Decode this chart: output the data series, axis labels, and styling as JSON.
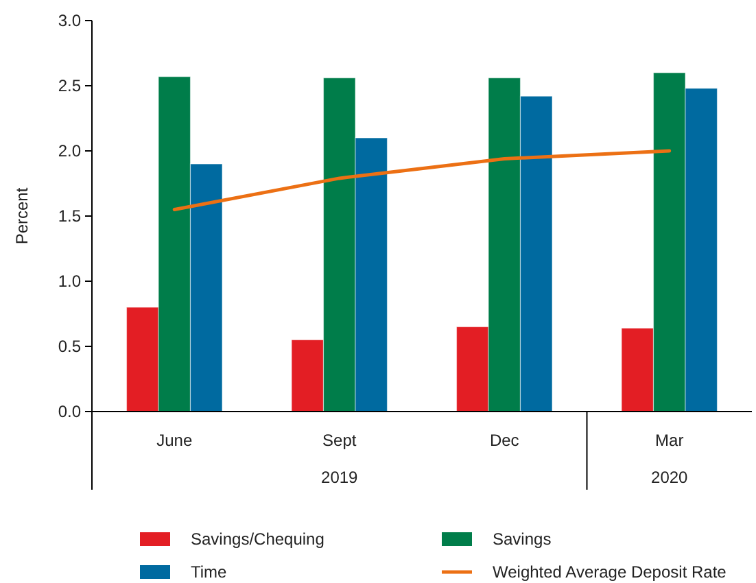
{
  "chart_data": {
    "type": "bar",
    "ylabel": "Percent",
    "categories": [
      "June",
      "Sept",
      "Dec",
      "Mar"
    ],
    "series": [
      {
        "name": "Savings/Chequing",
        "color": "#e31e24",
        "values": [
          0.8,
          0.55,
          0.65,
          0.64
        ]
      },
      {
        "name": "Savings",
        "color": "#007d4a",
        "values": [
          2.57,
          2.56,
          2.56,
          2.6
        ]
      },
      {
        "name": "Time",
        "color": "#006aa0",
        "values": [
          1.9,
          2.1,
          2.42,
          2.48
        ]
      },
      {
        "name": "Weighted Average Deposit Rate",
        "type": "line",
        "color": "#ec7014",
        "values": [
          1.55,
          1.79,
          1.94,
          2.0
        ]
      }
    ],
    "annotations": [
      "2019",
      "2020"
    ],
    "ylim": [
      0,
      3
    ],
    "yticks": [
      {
        "value": 0,
        "label": "0.0"
      },
      {
        "value": 0.5,
        "label": "0.5"
      },
      {
        "value": 1,
        "label": "1.0"
      },
      {
        "value": 1.5,
        "label": "1.5"
      },
      {
        "value": 2,
        "label": "2.0"
      },
      {
        "value": 2.5,
        "label": "2.5"
      },
      {
        "value": 3,
        "label": "3.0"
      }
    ],
    "grid": false,
    "legend": "bottom"
  }
}
